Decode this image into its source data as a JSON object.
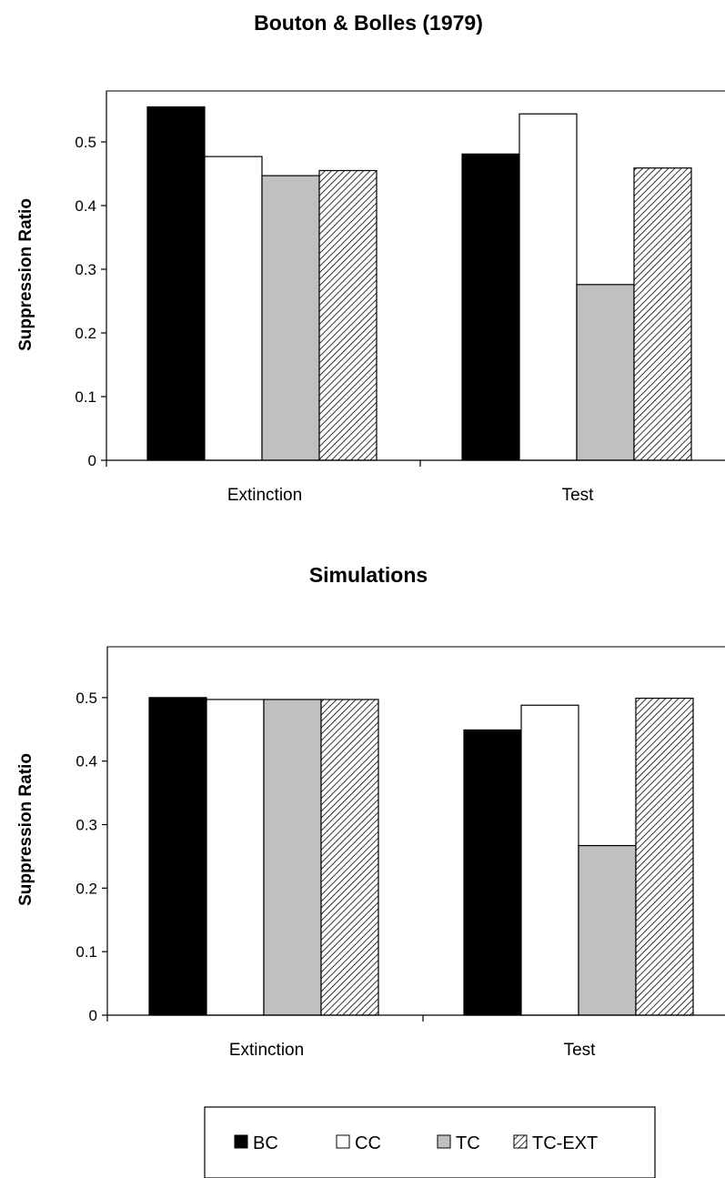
{
  "legend": {
    "position": "bottom",
    "items": [
      {
        "label": "BC",
        "fill": "#000000"
      },
      {
        "label": "CC",
        "fill": "#ffffff"
      },
      {
        "label": "TC",
        "fill": "#c0c0c0"
      },
      {
        "label": "TC-EXT",
        "fill": "hatch"
      }
    ]
  },
  "chart_data": [
    {
      "type": "bar",
      "title": "Bouton & Bolles (1979)",
      "xlabel": "",
      "ylabel": "Suppression Ratio",
      "ylim": [
        0,
        0.58
      ],
      "yticks": [
        "0",
        "0.1",
        "0.2",
        "0.3",
        "0.4",
        "0.5"
      ],
      "grid": false,
      "categories": [
        "Extinction",
        "Test"
      ],
      "series": [
        {
          "name": "BC",
          "values": [
            0.555,
            0.481
          ]
        },
        {
          "name": "CC",
          "values": [
            0.477,
            0.544
          ]
        },
        {
          "name": "TC",
          "values": [
            0.447,
            0.276
          ]
        },
        {
          "name": "TC-EXT",
          "values": [
            0.455,
            0.459
          ]
        }
      ]
    },
    {
      "type": "bar",
      "title": "Simulations",
      "xlabel": "",
      "ylabel": "Suppression Ratio",
      "ylim": [
        0,
        0.58
      ],
      "yticks": [
        "0",
        "0.1",
        "0.2",
        "0.3",
        "0.4",
        "0.5"
      ],
      "grid": false,
      "categories": [
        "Extinction",
        "Test"
      ],
      "series": [
        {
          "name": "BC",
          "values": [
            0.5,
            0.449
          ]
        },
        {
          "name": "CC",
          "values": [
            0.497,
            0.488
          ]
        },
        {
          "name": "TC",
          "values": [
            0.497,
            0.267
          ]
        },
        {
          "name": "TC-EXT",
          "values": [
            0.497,
            0.499
          ]
        }
      ]
    }
  ]
}
